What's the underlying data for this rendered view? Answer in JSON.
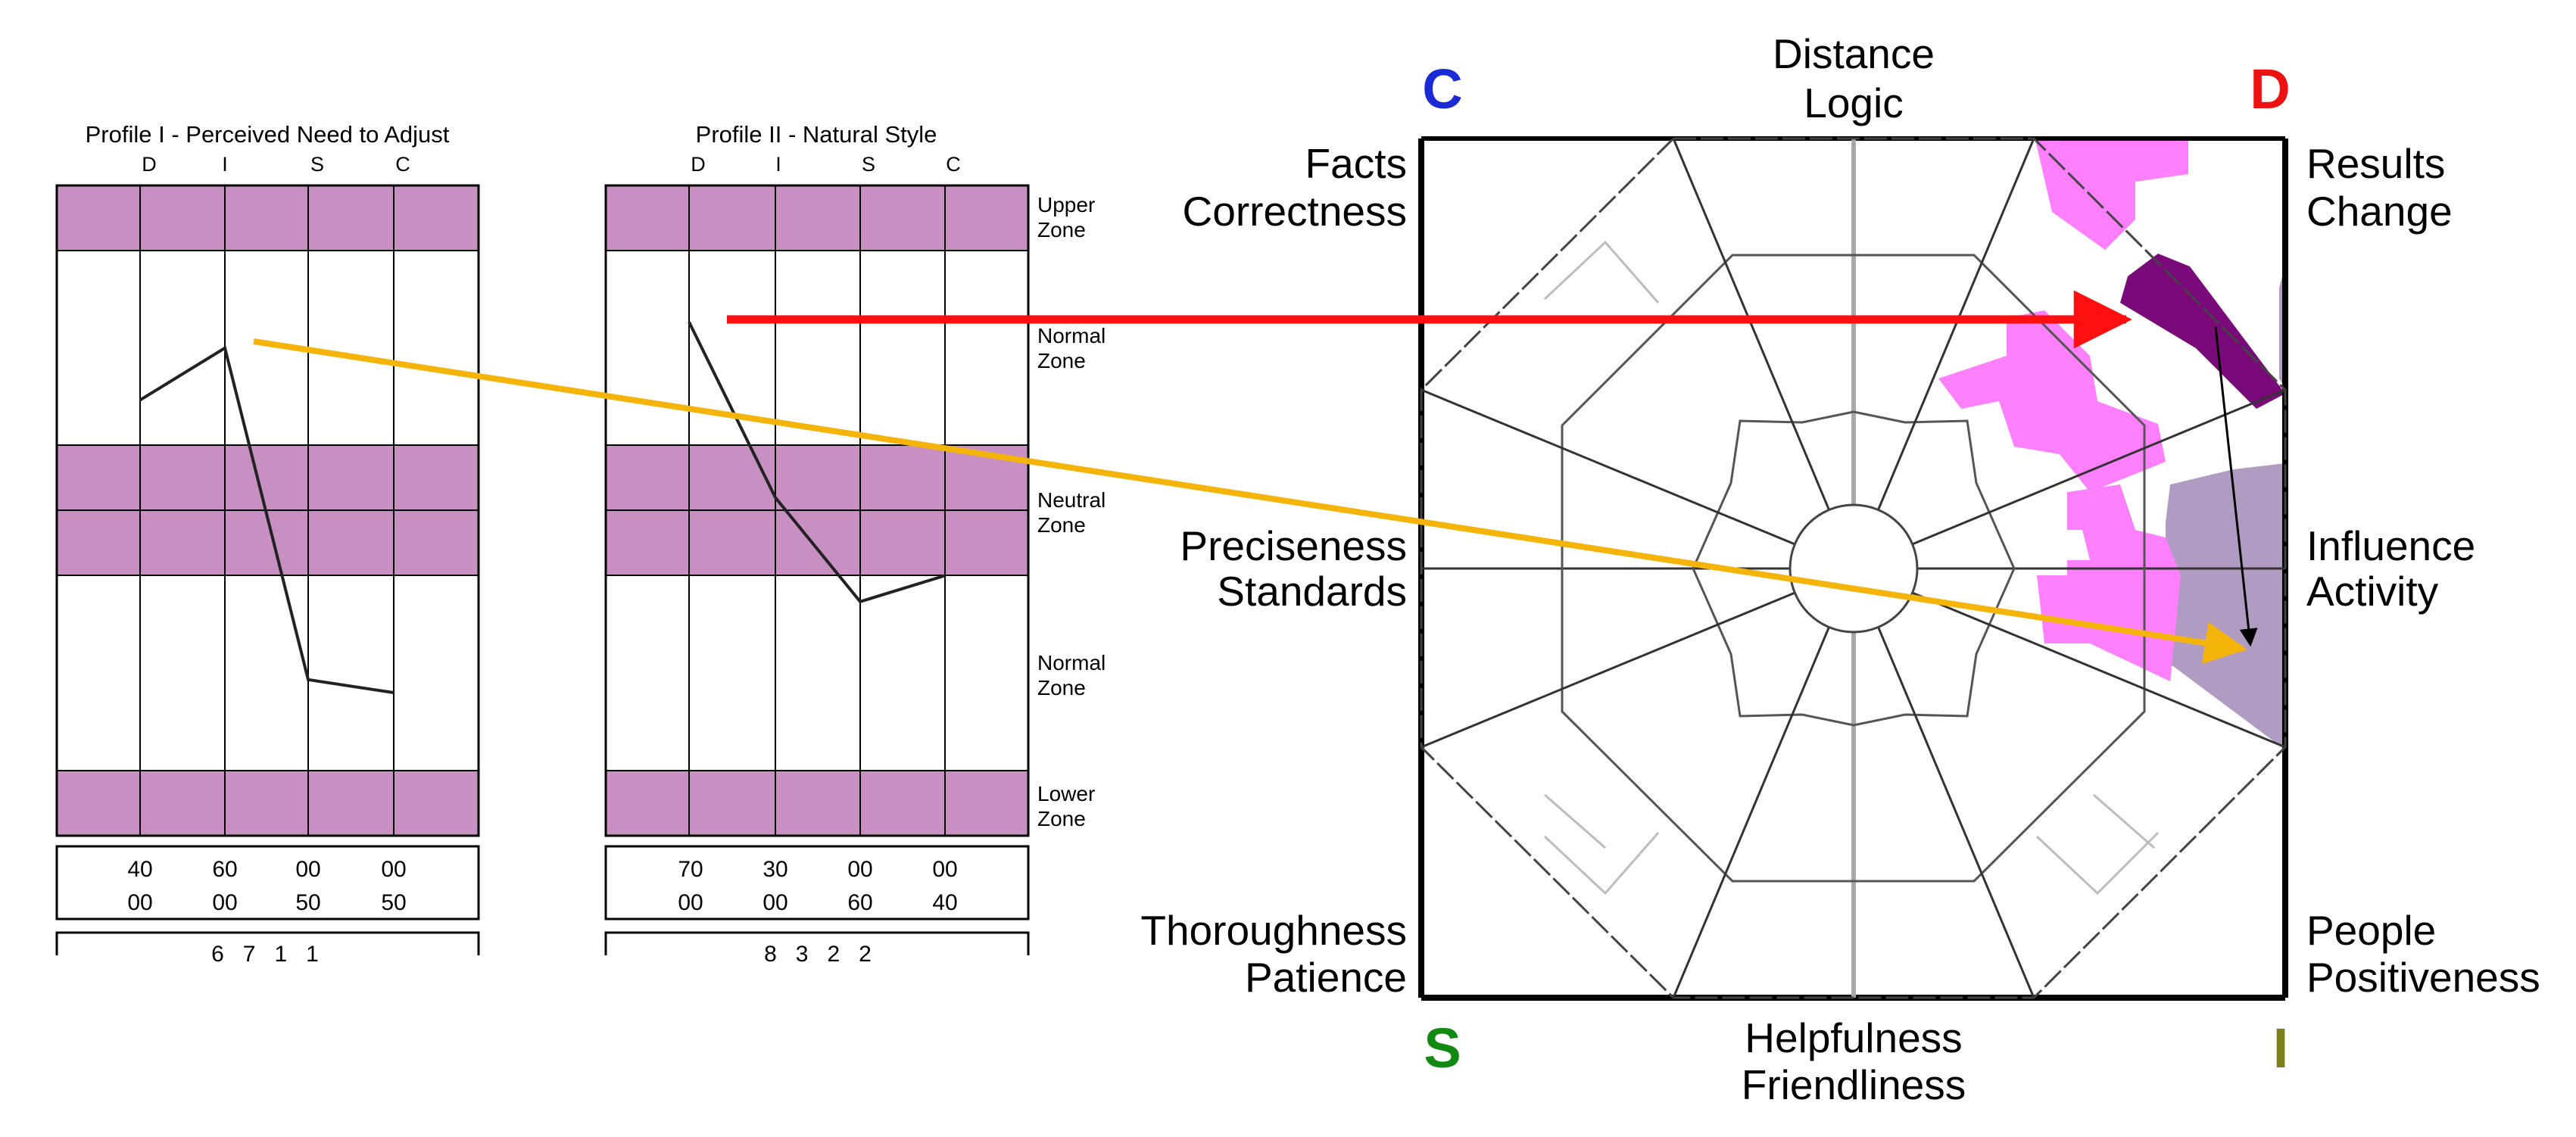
{
  "profile1": {
    "title": "Profile I - Perceived Need to Adjust",
    "columns": [
      "D",
      "I",
      "S",
      "C"
    ],
    "row1": [
      "40",
      "60",
      "00",
      "00"
    ],
    "row2": [
      "00",
      "00",
      "50",
      "50"
    ],
    "line_levels_percent_from_top": [
      33,
      25,
      76,
      78
    ],
    "partial_row": "6   7   1   1"
  },
  "profile2": {
    "title": "Profile II - Natural Style",
    "columns": [
      "D",
      "I",
      "S",
      "C"
    ],
    "row1": [
      "70",
      "30",
      "00",
      "00"
    ],
    "row2": [
      "00",
      "00",
      "60",
      "40"
    ],
    "line_levels_percent_from_top": [
      21,
      48,
      64,
      60
    ],
    "partial_row": "8   3   2   2"
  },
  "zones": {
    "upper": [
      "Upper",
      "Zone"
    ],
    "normal_top": [
      "Normal",
      "Zone"
    ],
    "neutral": [
      "Neutral",
      "Zone"
    ],
    "normal_bottom": [
      "Normal",
      "Zone"
    ],
    "lower": [
      "Lower",
      "Zone"
    ]
  },
  "wheel": {
    "corners": {
      "c": "C",
      "d": "D",
      "s": "S",
      "i": "I"
    },
    "corner_colors": {
      "c": "#1a2bd6",
      "d": "#ee1111",
      "s": "#128a12",
      "i": "#7f7f1a"
    },
    "top": [
      "Distance",
      "Logic"
    ],
    "bottom": [
      "Helpfulness",
      "Friendliness"
    ],
    "left_top": [
      "Facts",
      "Correctness"
    ],
    "left_mid": [
      "Preciseness",
      "Standards"
    ],
    "left_bottom": [
      "Thoroughness",
      "Patience"
    ],
    "right_top": [
      "Results",
      "Change"
    ],
    "right_mid": [
      "Influence",
      "Activity"
    ],
    "right_bottom": [
      "People",
      "Positiveness"
    ]
  },
  "colors": {
    "zone_fill": "#c88fc2",
    "shade_light": "#ff80ff",
    "shade_mid": "#b09cc2",
    "shade_dark": "#7a0a7a",
    "arrow_red": "#ff1010",
    "arrow_orange": "#f5b40a"
  }
}
